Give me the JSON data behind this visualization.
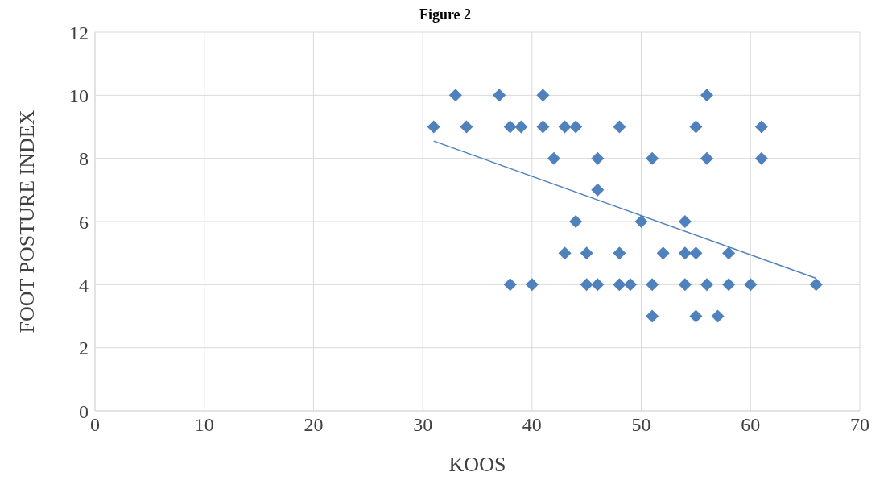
{
  "chart_data": {
    "type": "scatter",
    "title": "Figure 2",
    "xlabel": "KOOS",
    "ylabel": "FOOT POSTURE INDEX",
    "xlim": [
      0,
      70
    ],
    "xticks": [
      0,
      10,
      20,
      30,
      40,
      50,
      60,
      70
    ],
    "ylim": [
      0,
      12
    ],
    "yticks": [
      0,
      2,
      4,
      6,
      8,
      10,
      12
    ],
    "grid": true,
    "legend": false,
    "series": [
      {
        "marker": "diamond",
        "color": "#4f81bd",
        "x": [
          33,
          37,
          41,
          56,
          31,
          34,
          38,
          39,
          41,
          43,
          44,
          48,
          55,
          61,
          42,
          46,
          51,
          56,
          61,
          46,
          44,
          50,
          54,
          43,
          45,
          48,
          52,
          54,
          55,
          58,
          38,
          40,
          45,
          46,
          48,
          49,
          51,
          54,
          56,
          58,
          60,
          66,
          51,
          55,
          57
        ],
        "values": [
          10,
          10,
          10,
          10,
          9,
          9,
          9,
          9,
          9,
          9,
          9,
          9,
          9,
          9,
          8,
          8,
          8,
          8,
          8,
          7,
          6,
          6,
          6,
          5,
          5,
          5,
          5,
          5,
          5,
          5,
          4,
          4,
          4,
          4,
          4,
          4,
          4,
          4,
          4,
          4,
          4,
          4,
          3,
          3,
          3
        ]
      },
      {
        "type": "line",
        "marker": "none",
        "color": "#4f81bd",
        "x": [
          31,
          66
        ],
        "values": [
          8.55,
          4.2
        ]
      }
    ]
  }
}
